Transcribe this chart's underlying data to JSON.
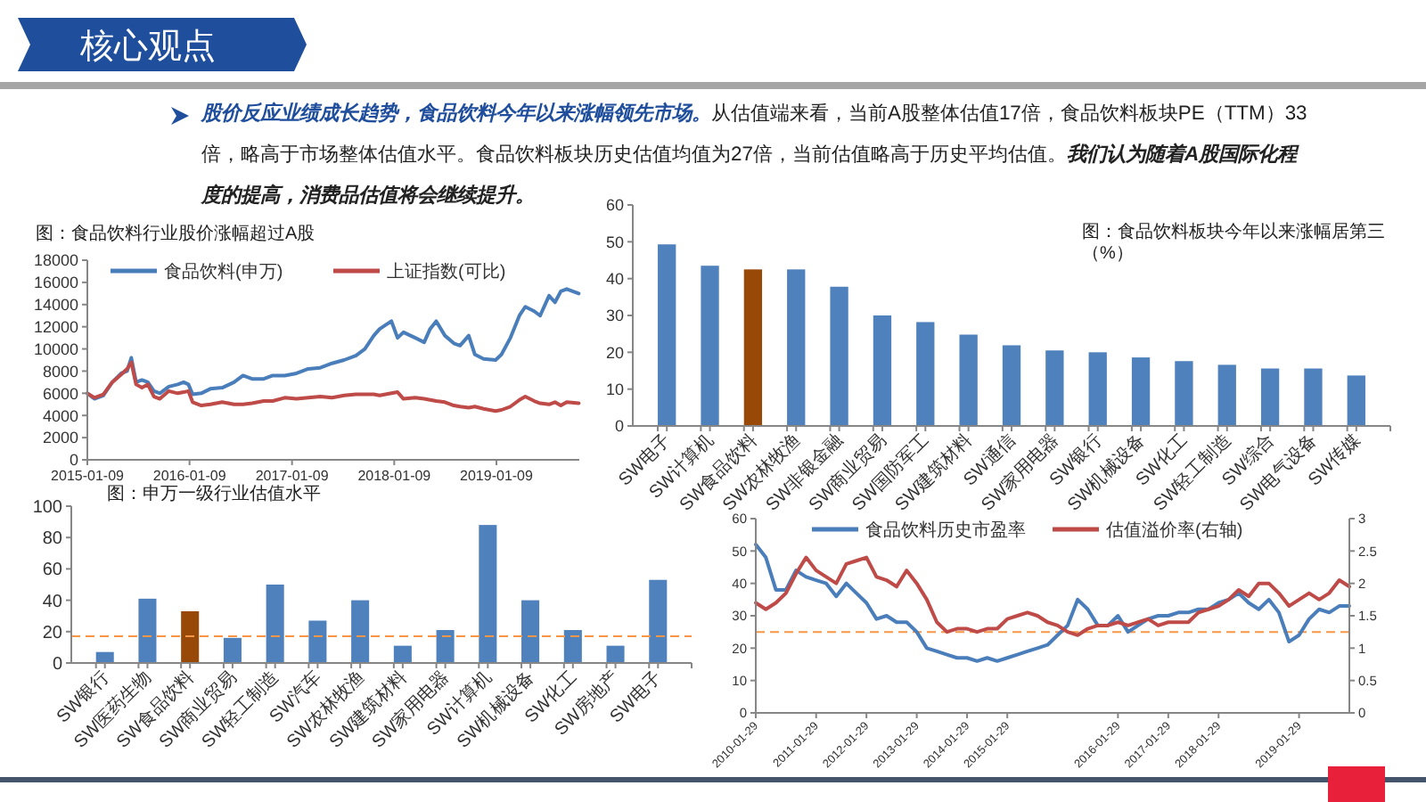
{
  "chart_data": [
    {
      "type": "other",
      "title": "核心观点",
      "annotations": [
        "股价反应业绩成长趋势，食品饮料今年以来涨幅领先市场。",
        "从估值端来看，当前A股整体估值17倍，食品饮料板块PE（TTM）33倍，略高于市场整体估值水平。食品饮料板块历史估值均值为27倍，当前估值略高于历史平均估值。",
        "我们认为随着A股国际化程度的提高，消费品估值将会继续提升。"
      ]
    },
    {
      "type": "line",
      "title": "图：食品饮料行业股价涨幅超过A股",
      "legend": "top",
      "xlim": [
        "2015-01-09",
        "2019-11-01"
      ],
      "xticks": [
        "2015-01-09",
        "2016-01-09",
        "2017-01-09",
        "2018-01-09",
        "2019-01-09"
      ],
      "ylim": [
        0,
        18000
      ],
      "yticks": [
        0,
        2000,
        4000,
        6000,
        8000,
        10000,
        12000,
        14000,
        16000,
        18000
      ],
      "x": [
        "2015-01-09",
        "2015-02-03",
        "2015-03-07",
        "2015-04-08",
        "2015-05-10",
        "2015-05-31",
        "2015-06-15",
        "2015-07-02",
        "2015-07-23",
        "2015-08-13",
        "2015-09-04",
        "2015-09-25",
        "2015-10-27",
        "2015-11-28",
        "2015-12-19",
        "2016-01-05",
        "2016-01-20",
        "2016-02-20",
        "2016-03-23",
        "2016-05-05",
        "2016-06-16",
        "2016-07-18",
        "2016-08-19",
        "2016-09-30",
        "2016-11-01",
        "2016-12-14",
        "2017-01-25",
        "2017-03-08",
        "2017-04-20",
        "2017-06-01",
        "2017-07-14",
        "2017-08-25",
        "2017-09-26",
        "2017-10-28",
        "2017-11-18",
        "2017-12-30",
        "2018-01-21",
        "2018-02-11",
        "2018-03-25",
        "2018-04-26",
        "2018-05-17",
        "2018-06-08",
        "2018-07-09",
        "2018-08-10",
        "2018-09-01",
        "2018-10-02",
        "2018-10-24",
        "2018-11-24",
        "2019-01-06",
        "2019-01-27",
        "2019-02-28",
        "2019-04-01",
        "2019-04-22",
        "2019-05-24",
        "2019-06-14",
        "2019-07-16",
        "2019-08-06",
        "2019-08-27",
        "2019-09-17",
        "2019-10-30"
      ],
      "series": [
        {
          "name": "食品饮料(申万)",
          "color": "#4a7ebb",
          "values": [
            6000,
            5500,
            5800,
            7000,
            7800,
            8000,
            9200,
            7000,
            7200,
            7000,
            6200,
            6000,
            6600,
            6800,
            7000,
            6800,
            5900,
            6000,
            6400,
            6500,
            7000,
            7600,
            7300,
            7300,
            7600,
            7600,
            7800,
            8200,
            8300,
            8700,
            9000,
            9400,
            10000,
            11200,
            11800,
            12500,
            11000,
            11500,
            11000,
            10600,
            11800,
            12500,
            11200,
            10500,
            10300,
            11200,
            9500,
            9100,
            9000,
            9500,
            11000,
            13000,
            13800,
            13400,
            13000,
            14800,
            14200,
            15200,
            15400,
            15000
          ]
        },
        {
          "name": "上证指数(可比)",
          "color": "#be4b48",
          "values": [
            6000,
            5600,
            5900,
            7000,
            7700,
            8200,
            8800,
            6800,
            6500,
            6800,
            5700,
            5500,
            6200,
            6000,
            6100,
            6200,
            5200,
            4900,
            5000,
            5200,
            5000,
            5000,
            5100,
            5300,
            5300,
            5600,
            5500,
            5600,
            5700,
            5600,
            5800,
            5900,
            5900,
            5900,
            5800,
            6000,
            6100,
            5500,
            5600,
            5500,
            5400,
            5300,
            5200,
            4900,
            4800,
            4700,
            4800,
            4600,
            4400,
            4500,
            4800,
            5400,
            5700,
            5300,
            5100,
            5000,
            5200,
            4900,
            5200,
            5100
          ]
        }
      ]
    },
    {
      "type": "bar",
      "title": "图：食品饮料板块今年以来涨幅居第三（%）",
      "categories": [
        "SW电子",
        "SW计算机",
        "SW食品饮料",
        "SW农林牧渔",
        "SW非银金融",
        "SW商业贸易",
        "SW国防军工",
        "SW建筑材料",
        "SW通信",
        "SW家用电器",
        "SW银行",
        "SW机械设备",
        "SW化工",
        "SW轻工制造",
        "SW综合",
        "SW电气设备",
        "SW传媒"
      ],
      "values": [
        49.3,
        43.5,
        42.5,
        42.5,
        37.8,
        30,
        28.2,
        24.8,
        21.9,
        20.5,
        20,
        18.6,
        17.6,
        16.6,
        15.6,
        15.6,
        13.7
      ],
      "colors": [
        "#4f81bd",
        "#4f81bd",
        "#984807",
        "#4f81bd",
        "#4f81bd",
        "#4f81bd",
        "#4f81bd",
        "#4f81bd",
        "#4f81bd",
        "#4f81bd",
        "#4f81bd",
        "#4f81bd",
        "#4f81bd",
        "#4f81bd",
        "#4f81bd",
        "#4f81bd",
        "#4f81bd"
      ],
      "ylim": [
        0,
        60
      ],
      "yticks": [
        0,
        10,
        20,
        30,
        40,
        50,
        60
      ]
    },
    {
      "type": "bar",
      "title": "图：申万一级行业估值水平",
      "categories": [
        "SW银行",
        "SW医药生物",
        "SW食品饮料",
        "SW商业贸易",
        "SW轻工制造",
        "SW汽车",
        "SW农林牧渔",
        "SW建筑材料",
        "SW家用电器",
        "SW计算机",
        "SW机械设备",
        "SW化工",
        "SW房地产",
        "SW电子"
      ],
      "values": [
        7,
        41,
        33,
        16,
        50,
        27,
        40,
        11,
        21,
        88,
        40,
        21,
        11,
        53
      ],
      "colors": [
        "#4f81bd",
        "#4f81bd",
        "#984807",
        "#4f81bd",
        "#4f81bd",
        "#4f81bd",
        "#4f81bd",
        "#4f81bd",
        "#4f81bd",
        "#4f81bd",
        "#4f81bd",
        "#4f81bd",
        "#4f81bd",
        "#4f81bd"
      ],
      "ylim": [
        0,
        100
      ],
      "yticks": [
        0,
        20,
        40,
        60,
        80,
        100
      ],
      "ref_lines": [
        {
          "axis": "y",
          "value": 17,
          "color": "#f79646",
          "line_style": "dashed"
        }
      ]
    },
    {
      "type": "line",
      "legend": "top",
      "categories": [
        "2010-01-29",
        null,
        null,
        null,
        null,
        null,
        "2011-01-29",
        null,
        null,
        null,
        null,
        "2012-01-29",
        null,
        null,
        null,
        null,
        "2013-01-29",
        null,
        null,
        null,
        null,
        "2014-01-29",
        null,
        null,
        null,
        "2015-01-29",
        null,
        null,
        null,
        null,
        null,
        null,
        null,
        null,
        null,
        null,
        "2016-01-29",
        null,
        null,
        null,
        null,
        "2017-01-29",
        null,
        null,
        null,
        null,
        "2018-01-29",
        null,
        null,
        null,
        null,
        null,
        null,
        null,
        "2019-01-29",
        null,
        null,
        null,
        null,
        null
      ],
      "ylim": [
        0,
        60
      ],
      "yticks": [
        0,
        10,
        20,
        30,
        40,
        50,
        60
      ],
      "y2lim": [
        0,
        3
      ],
      "y2ticks": [
        0,
        0.5,
        1,
        1.5,
        2,
        2.5,
        3
      ],
      "ref_lines": [
        {
          "axis": "y",
          "value": 25,
          "color": "#f79646",
          "line_style": "dashed"
        }
      ],
      "series": [
        {
          "name": "食品饮料历史市盈率",
          "color": "#4a7ebb",
          "values": [
            52,
            48,
            38,
            38,
            44,
            42,
            41,
            40,
            36,
            40,
            37,
            34,
            29,
            30,
            28,
            28,
            25,
            20,
            19,
            18,
            17,
            17,
            16,
            17,
            16,
            17,
            18,
            19,
            20,
            21,
            24,
            27,
            35,
            32,
            27,
            27,
            30,
            25,
            27,
            29,
            30,
            30,
            31,
            31,
            32,
            32,
            34,
            35,
            37,
            34,
            32,
            35,
            31,
            22,
            24,
            29,
            32,
            31,
            33,
            33
          ]
        },
        {
          "name": "估值溢价率(右轴)",
          "color": "#be4b48",
          "axis": "y2",
          "values": [
            1.7,
            1.6,
            1.7,
            1.85,
            2.15,
            2.4,
            2.2,
            2.1,
            2.0,
            2.3,
            2.35,
            2.4,
            2.1,
            2.05,
            1.95,
            2.2,
            2.0,
            1.75,
            1.4,
            1.25,
            1.3,
            1.3,
            1.25,
            1.3,
            1.3,
            1.45,
            1.5,
            1.55,
            1.5,
            1.4,
            1.35,
            1.25,
            1.2,
            1.3,
            1.35,
            1.35,
            1.4,
            1.35,
            1.4,
            1.45,
            1.35,
            1.4,
            1.4,
            1.4,
            1.55,
            1.6,
            1.65,
            1.75,
            1.9,
            1.8,
            2.0,
            2.0,
            1.85,
            1.65,
            1.75,
            1.85,
            1.75,
            1.85,
            2.05,
            1.95
          ]
        }
      ]
    }
  ]
}
